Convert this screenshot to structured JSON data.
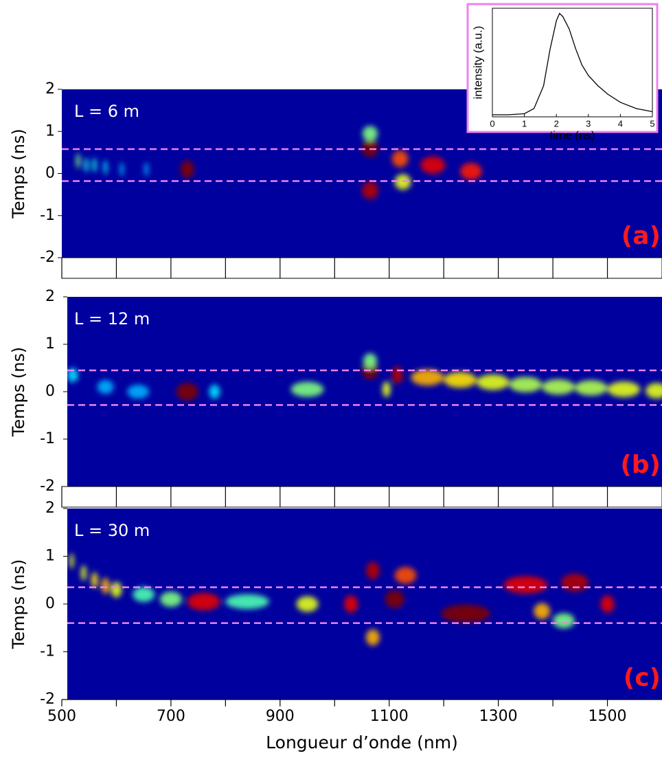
{
  "chart_data": [
    {
      "type": "heatmap",
      "label": "L = 6 m",
      "panel_label": "(a)",
      "y_label": "Temps (ns)",
      "xlim": [
        500,
        1600
      ],
      "ylim": [
        -2,
        2
      ],
      "yticks": [
        2,
        1,
        0,
        -1,
        -2
      ],
      "hlines": [
        0.58,
        -0.18
      ],
      "hline_color": "#ee82ee",
      "spots": {
        "x": [
          530,
          545,
          560,
          580,
          610,
          655,
          730,
          1065,
          1065,
          1065,
          1120,
          1125,
          1180,
          1250
        ],
        "y": [
          0.3,
          0.2,
          0.2,
          0.15,
          0.1,
          0.1,
          0.1,
          0.6,
          0.95,
          -0.4,
          0.35,
          -0.2,
          0.2,
          0.05
        ],
        "widths": [
          6,
          6,
          6,
          6,
          5,
          5,
          25,
          30,
          28,
          30,
          30,
          30,
          45,
          40
        ],
        "intensity": [
          0.5,
          0.4,
          0.4,
          0.35,
          0.3,
          0.3,
          1.0,
          1.0,
          0.5,
          0.95,
          0.8,
          0.6,
          0.9,
          0.85
        ]
      }
    },
    {
      "type": "heatmap",
      "label": "L = 12 m",
      "panel_label": "(b)",
      "y_label": "Temps (ns)",
      "xlim": [
        500,
        1600
      ],
      "ylim": [
        -2,
        2
      ],
      "yticks": [
        2,
        1,
        0,
        -1,
        -2
      ],
      "hlines": [
        0.45,
        -0.28
      ],
      "hline_color": "#ee82ee",
      "spots": {
        "x": [
          520,
          580,
          640,
          730,
          780,
          950,
          1065,
          1065,
          1095,
          1115,
          1170,
          1230,
          1290,
          1350,
          1410,
          1470,
          1530,
          1590
        ],
        "y": [
          0.35,
          0.1,
          0.0,
          0.0,
          0.0,
          0.05,
          0.45,
          0.65,
          0.05,
          0.35,
          0.3,
          0.25,
          0.2,
          0.15,
          0.1,
          0.08,
          0.05,
          0.02
        ],
        "widths": [
          20,
          30,
          40,
          40,
          20,
          60,
          30,
          25,
          15,
          20,
          60,
          60,
          60,
          60,
          60,
          60,
          60,
          40
        ],
        "intensity": [
          0.35,
          0.3,
          0.3,
          1.0,
          0.35,
          0.5,
          1.0,
          0.5,
          0.6,
          0.95,
          0.7,
          0.65,
          0.6,
          0.55,
          0.55,
          0.55,
          0.6,
          0.6
        ]
      }
    },
    {
      "type": "heatmap",
      "label": "L = 30 m",
      "panel_label": "(c)",
      "y_label": "Temps (ns)",
      "x_label": "Longueur d’onde (nm)",
      "xlim": [
        500,
        1600
      ],
      "ylim": [
        -2,
        2
      ],
      "yticks": [
        2,
        1,
        0,
        -1,
        -2
      ],
      "xticks": [
        500,
        700,
        900,
        1100,
        1300,
        1500
      ],
      "xminor_ticks": [
        600,
        800,
        1000,
        1200,
        1400
      ],
      "hlines": [
        0.35,
        -0.4
      ],
      "hline_color": "#ee82ee",
      "spots": {
        "x": [
          518,
          540,
          560,
          580,
          600,
          650,
          700,
          760,
          840,
          950,
          1030,
          1070,
          1070,
          1110,
          1130,
          1240,
          1350,
          1440,
          1380,
          1500,
          1420
        ],
        "y": [
          0.9,
          0.65,
          0.5,
          0.38,
          0.3,
          0.2,
          0.1,
          0.05,
          0.05,
          0.0,
          0.0,
          0.7,
          -0.7,
          0.1,
          0.6,
          -0.2,
          0.4,
          0.45,
          -0.15,
          0.0,
          -0.35
        ],
        "widths": [
          8,
          10,
          12,
          15,
          20,
          40,
          40,
          60,
          80,
          40,
          25,
          25,
          25,
          35,
          40,
          90,
          80,
          50,
          30,
          25,
          40
        ],
        "intensity": [
          0.6,
          0.6,
          0.65,
          0.7,
          0.6,
          0.45,
          0.5,
          0.9,
          0.45,
          0.6,
          0.9,
          0.95,
          0.7,
          1.0,
          0.8,
          1.0,
          0.9,
          0.95,
          0.7,
          0.9,
          0.5
        ]
      }
    },
    {
      "type": "line",
      "x_label": "time (ns)",
      "y_label": "intensity (a.u.)",
      "color": "#000000",
      "frame_color": "#ee82ee",
      "xlim": [
        0,
        5
      ],
      "ylim": [
        0,
        1.05
      ],
      "xticks": [
        0,
        1,
        2,
        3,
        4,
        5
      ],
      "x": [
        0,
        0.5,
        1,
        1.3,
        1.6,
        1.8,
        2.0,
        2.1,
        2.2,
        2.4,
        2.6,
        2.8,
        3,
        3.3,
        3.6,
        4,
        4.5,
        5
      ],
      "values": [
        0.02,
        0.02,
        0.03,
        0.08,
        0.3,
        0.65,
        0.93,
        1.0,
        0.97,
        0.85,
        0.66,
        0.5,
        0.4,
        0.3,
        0.22,
        0.14,
        0.08,
        0.05
      ]
    }
  ]
}
